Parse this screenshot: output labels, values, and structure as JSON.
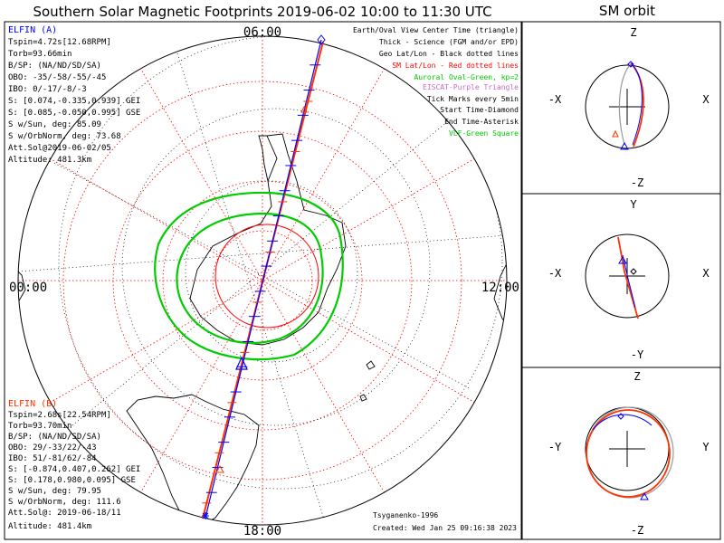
{
  "title": "Southern Solar Magnetic Footprints 2019-06-02 10:00 to 11:30 UTC",
  "orbit_title": "SM orbit",
  "time_labels": {
    "top": "06:00",
    "left": "00:00",
    "right": "12:00",
    "bottom": "18:00"
  },
  "elfin_a": {
    "lines": [
      "ELFIN (A)",
      "Tspin=4.72s[12.68RPM]",
      "Torb=93.66min",
      "B/SP: (NA/ND/SD/SA)",
      "OBO: -35/-58/-55/-45",
      "IBO: 0/-17/-8/-3",
      "S: [0.074,-0.335,0.939] GEI",
      "S: [0.085,-0.050,0.995] GSE",
      "S w/Sun, deg: 85.09",
      "S w/OrbNorm, deg: 73.68",
      "Att.Sol@2019-06-02/05",
      "Altitude: 481.3km"
    ]
  },
  "elfin_b": {
    "lines": [
      "ELFIN (B)",
      "Tspin=2.68s[22.54RPM]",
      "Torb=93.70min",
      "B/SP: (NA/ND/SD/SA)",
      "OBO: 29/-33/22/-43",
      "IBO: 51/-81/62/-84",
      "S: [-0.874,0.407,0.262] GEI",
      "S: [0.178,0.980,0.095] GSE",
      "S w/Sun, deg: 79.95",
      "S w/OrbNorm, deg: 111.6",
      "Att.Sol@: 2019-06-18/11",
      "Altitude: 481.4km"
    ]
  },
  "legend": [
    {
      "text": "Earth/Oval View Center Time (triangle)",
      "color": "#000000"
    },
    {
      "text": "Thick - Science (FGM and/or EPD)",
      "color": "#000000"
    },
    {
      "text": "Geo Lat/Lon - Black dotted lines",
      "color": "#000000"
    },
    {
      "text": "SM Lat/Lon - Red dotted lines",
      "color": "#ff0000"
    },
    {
      "text": "Auroral Oval-Green, kp=2",
      "color": "#00cc00"
    },
    {
      "text": "EISCAT-Purple Triangle",
      "color": "#cc66cc"
    },
    {
      "text": "Tick Marks every 5min",
      "color": "#000000"
    },
    {
      "text": "Start Time-Diamond",
      "color": "#000000"
    },
    {
      "text": "End Time-Asterisk",
      "color": "#000000"
    },
    {
      "text": "VLF-Green Square",
      "color": "#00cc00"
    }
  ],
  "footer": {
    "credit": "Tsyganenko-1996",
    "created": "Created: Wed Jan 25 09:16:38 2023"
  },
  "orbit_panels": [
    {
      "top": "Z",
      "bottom": "-Z",
      "left": "-X",
      "right": "X"
    },
    {
      "top": "Y",
      "bottom": "-Y",
      "left": "-X",
      "right": "X"
    },
    {
      "top": "Z",
      "bottom": "-Z",
      "left": "-Y",
      "right": "Y"
    }
  ],
  "colors": {
    "elfin_a": "#0000ff",
    "elfin_b": "#ff3300",
    "sm_grid": "#ff0000",
    "geo_grid": "#000000",
    "auroral_oval": "#00cc00",
    "orbit_gray": "#999999"
  }
}
